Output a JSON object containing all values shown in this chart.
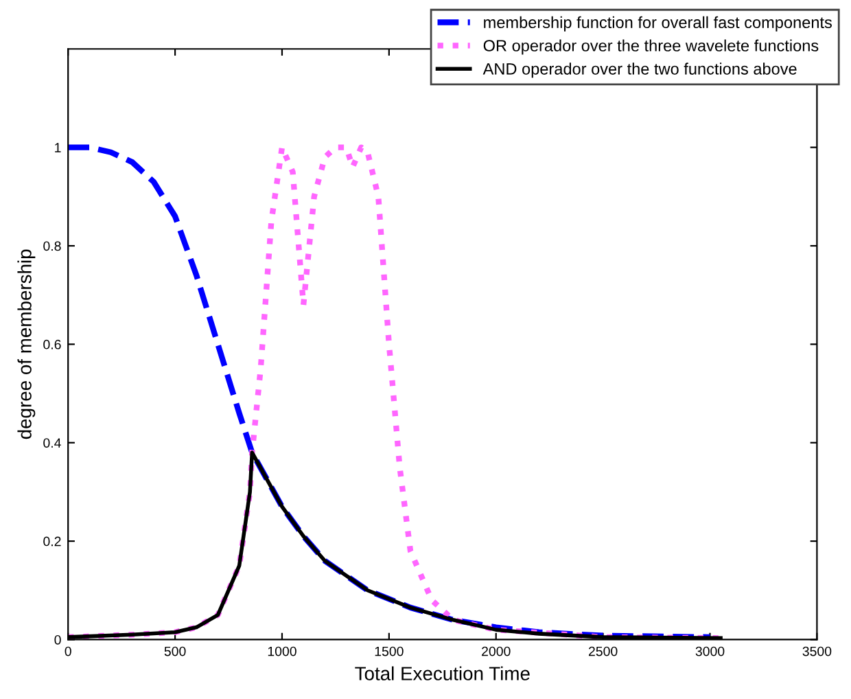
{
  "chart_data": {
    "type": "line",
    "xlabel": "Total Execution Time",
    "ylabel": "degree of membership",
    "xlim": [
      0,
      3500
    ],
    "xticks": [
      0,
      500,
      1000,
      1500,
      2000,
      2500,
      3000,
      3500
    ],
    "ylim": [
      0,
      1.2
    ],
    "yticks": [
      0,
      0.2,
      0.4,
      0.6,
      0.8,
      1
    ],
    "grid": false,
    "legend": "top right",
    "series": [
      {
        "name": "membership function for overall fast components",
        "color": "#0000ff",
        "line_style": "dashed",
        "x": [
          0,
          100,
          200,
          300,
          400,
          500,
          600,
          700,
          800,
          860,
          1000,
          1100,
          1200,
          1400,
          1600,
          1800,
          2000,
          2200,
          2500,
          3000
        ],
        "values": [
          1,
          1,
          0.99,
          0.97,
          0.93,
          0.86,
          0.74,
          0.6,
          0.46,
          0.38,
          0.27,
          0.21,
          0.16,
          0.1,
          0.065,
          0.04,
          0.025,
          0.015,
          0.008,
          0.005
        ]
      },
      {
        "name": "OR operador over the three wavelete functions",
        "color": "#ff66ff",
        "line_style": "dotted",
        "x": [
          0,
          300,
          500,
          600,
          700,
          800,
          850,
          860,
          900,
          950,
          1000,
          1050,
          1100,
          1150,
          1200,
          1250,
          1300,
          1330,
          1370,
          1400,
          1450,
          1500,
          1550,
          1600,
          1700,
          1800,
          2000,
          2500,
          3050
        ],
        "values": [
          0.005,
          0.01,
          0.015,
          0.025,
          0.05,
          0.15,
          0.3,
          0.38,
          0.55,
          0.85,
          1,
          0.95,
          0.68,
          0.9,
          0.98,
          1,
          1,
          0.96,
          1,
          0.99,
          0.9,
          0.6,
          0.35,
          0.18,
          0.08,
          0.04,
          0.02,
          0.005,
          0.003
        ]
      },
      {
        "name": "AND operador over the two functions above",
        "color": "#000000",
        "line_style": "solid",
        "x": [
          0,
          300,
          500,
          600,
          700,
          800,
          850,
          860,
          1000,
          1100,
          1200,
          1400,
          1600,
          1800,
          2000,
          2200,
          2500,
          3050
        ],
        "values": [
          0.005,
          0.01,
          0.015,
          0.025,
          0.05,
          0.15,
          0.3,
          0.38,
          0.27,
          0.21,
          0.16,
          0.1,
          0.065,
          0.04,
          0.02,
          0.012,
          0.005,
          0.003
        ]
      }
    ]
  }
}
